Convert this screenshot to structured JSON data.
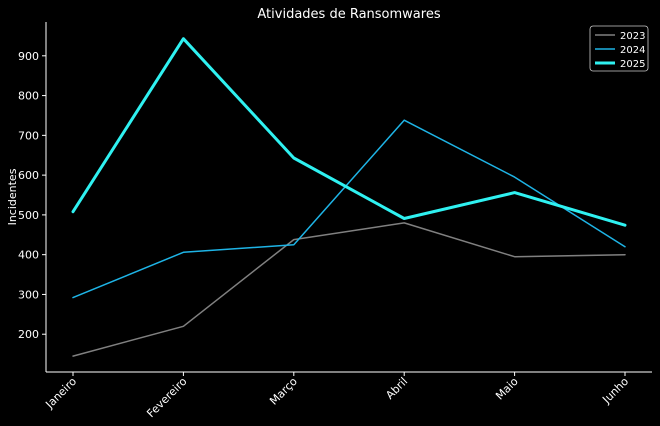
{
  "chart_data": {
    "type": "line",
    "title": "Atividades de Ransomwares",
    "xlabel": "",
    "ylabel": "Incidentes",
    "categories": [
      "Janeiro",
      "Fevereiro",
      "Março",
      "Abril",
      "Maio",
      "Junho"
    ],
    "ylim": [
      105,
      985
    ],
    "yticks": [
      200,
      300,
      400,
      500,
      600,
      700,
      800,
      900
    ],
    "grid": false,
    "legend_position": "top-right",
    "series": [
      {
        "name": "2023",
        "values": [
          145,
          220,
          438,
          480,
          395,
          400
        ],
        "color": "#808080",
        "width": 1.5
      },
      {
        "name": "2024",
        "values": [
          292,
          406,
          425,
          738,
          595,
          420
        ],
        "color": "#1eb4e6",
        "width": 1.5
      },
      {
        "name": "2025",
        "values": [
          508,
          943,
          643,
          491,
          556,
          474
        ],
        "color": "#2ff1f1",
        "width": 3
      }
    ]
  }
}
